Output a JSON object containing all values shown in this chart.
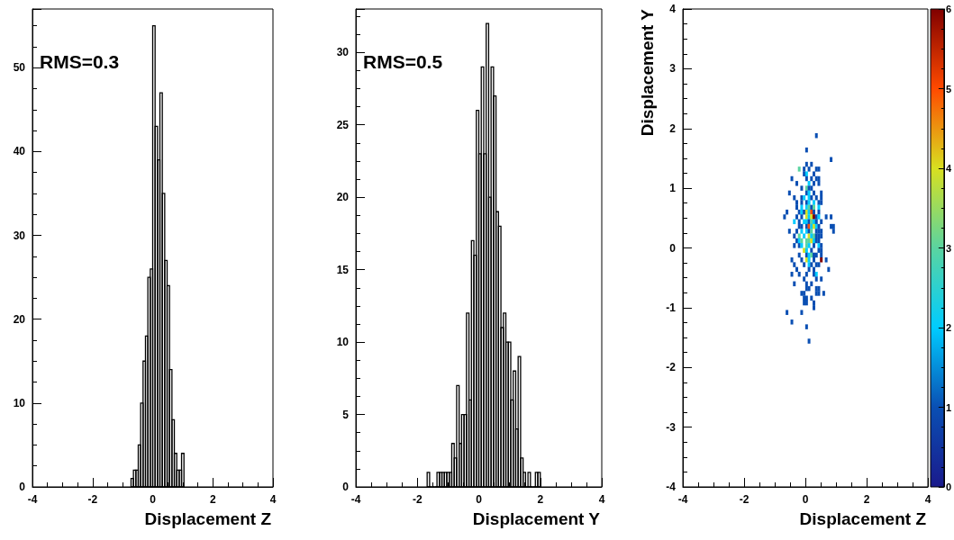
{
  "chart_data": [
    {
      "type": "histogram",
      "color": "#000000",
      "xlabel": "Displacement Z",
      "annotations": [
        "RMS=0.3"
      ],
      "bins": [
        -0.72,
        -0.64,
        -0.56,
        -0.48,
        -0.4,
        -0.32,
        -0.24,
        -0.16,
        -0.08,
        0,
        0.08,
        0.16,
        0.24,
        0.32,
        0.4,
        0.48,
        0.56,
        0.64,
        0.72,
        0.8,
        0.88,
        0.96,
        1.04
      ],
      "values": [
        1,
        2,
        2,
        5,
        10,
        15,
        18,
        25,
        26,
        55,
        43,
        39,
        47,
        35,
        27,
        24,
        14,
        8,
        4,
        2,
        2,
        4
      ],
      "xlim": [
        -4,
        4
      ],
      "xticks": [
        -4,
        -2,
        0,
        2,
        4
      ],
      "ylim": [
        0,
        57
      ],
      "yticks": [
        0,
        10,
        20,
        30,
        40,
        50
      ]
    },
    {
      "type": "histogram",
      "color": "#000000",
      "xlabel": "Displacement Y",
      "annotations": [
        "RMS=0.5"
      ],
      "bins": [
        -1.68,
        -1.6,
        -1.52,
        -1.44,
        -1.36,
        -1.28,
        -1.2,
        -1.12,
        -1.04,
        -0.96,
        -0.88,
        -0.8,
        -0.72,
        -0.64,
        -0.56,
        -0.48,
        -0.4,
        -0.32,
        -0.24,
        -0.16,
        -0.08,
        0,
        0.08,
        0.16,
        0.24,
        0.32,
        0.4,
        0.48,
        0.56,
        0.64,
        0.72,
        0.8,
        0.88,
        0.96,
        1.04,
        1.12,
        1.2,
        1.28,
        1.36,
        1.44,
        1.52,
        1.6,
        1.68,
        1.76,
        1.84,
        1.92,
        2.0
      ],
      "values": [
        1,
        0,
        0,
        0,
        1,
        1,
        1,
        1,
        1,
        1,
        3,
        2,
        7,
        3,
        5,
        5,
        12,
        6,
        17,
        16,
        26,
        23,
        29,
        23,
        32,
        20,
        29,
        27,
        19,
        18,
        11,
        12,
        10,
        10,
        6,
        8,
        4,
        9,
        2,
        1,
        0,
        1,
        0,
        0,
        1,
        1
      ],
      "xlim": [
        -4,
        4
      ],
      "xticks": [
        -4,
        -2,
        0,
        2,
        4
      ],
      "ylim": [
        0,
        33
      ],
      "yticks": [
        0,
        5,
        10,
        15,
        20,
        25,
        30
      ]
    },
    {
      "type": "scatter",
      "marker": "square",
      "xlabel": "Displacement Z",
      "ylabel": "Displacement Y",
      "x": [
        0.36,
        0.04,
        0.84,
        0.04,
        0.2,
        -0.2,
        -0.04,
        0.12,
        0.36,
        0.44,
        -0.04,
        0.04,
        0.28,
        -0.44,
        0.04,
        0.2,
        0.36,
        0.44,
        -0.28,
        0.12,
        0.28,
        0.44,
        -0.12,
        0.04,
        0.12,
        0.2,
        -0.52,
        0.04,
        0.12,
        0.28,
        0.52,
        -0.36,
        -0.12,
        -0.04,
        0.12,
        0.2,
        0.36,
        0.52,
        -0.28,
        -0.12,
        0.04,
        0.12,
        0.28,
        0.44,
        0.52,
        -0.28,
        -0.12,
        0.04,
        0.12,
        0.2,
        0.28,
        0.44,
        -0.6,
        -0.2,
        -0.12,
        -0.04,
        0.04,
        0.12,
        0.2,
        0.28,
        0.44,
        -0.68,
        -0.28,
        -0.12,
        0.04,
        0.12,
        0.2,
        0.28,
        0.36,
        0.44,
        0.68,
        0.84,
        -0.36,
        -0.2,
        -0.04,
        0.04,
        0.12,
        0.2,
        0.28,
        0.36,
        0.52,
        -0.2,
        -0.12,
        0.04,
        0.12,
        0.2,
        0.28,
        0.36,
        0.44,
        0.84,
        0.92,
        -0.52,
        -0.28,
        -0.12,
        0.04,
        0.12,
        0.2,
        0.36,
        0.44,
        0.52,
        0.92,
        -0.36,
        -0.2,
        -0.04,
        0.12,
        0.2,
        0.28,
        0.36,
        0.44,
        0.52,
        -0.28,
        -0.2,
        -0.12,
        0.04,
        0.12,
        0.2,
        0.28,
        0.36,
        0.44,
        -0.36,
        -0.2,
        -0.12,
        0.04,
        0.12,
        0.28,
        0.44,
        0.52,
        -0.04,
        0.04,
        0.2,
        0.44,
        0.52,
        -0.2,
        0.04,
        0.12,
        0.2,
        0.28,
        0.36,
        0.52,
        -0.44,
        -0.12,
        0.04,
        0.12,
        0.28,
        0.52,
        0.68,
        -0.36,
        -0.04,
        0.12,
        0.2,
        0.36,
        0.44,
        -0.28,
        0.12,
        0.28,
        0.76,
        -0.44,
        -0.2,
        0.04,
        0.28,
        0.36,
        -0.04,
        0.36,
        0.52,
        -0.36,
        0.04,
        0.2,
        0.04,
        0.12,
        0.36,
        0.44,
        -0.12,
        -0.04,
        0.36,
        0.44,
        0.6,
        -0.04,
        0.04,
        0.2,
        -0.04,
        0.04,
        0.28,
        0.28,
        -0.6,
        -0.12,
        -0.44,
        0.04,
        0.12
      ],
      "values": [
        1.88,
        1.64,
        1.48,
        1.4,
        1.4,
        1.32,
        1.32,
        1.32,
        1.32,
        1.32,
        1.24,
        1.24,
        1.24,
        1.16,
        1.16,
        1.16,
        1.16,
        1.16,
        1.08,
        1.08,
        1.08,
        1.08,
        1.0,
        1.0,
        1.0,
        1.0,
        0.92,
        0.92,
        0.92,
        0.92,
        0.92,
        0.84,
        0.84,
        0.84,
        0.84,
        0.84,
        0.84,
        0.84,
        0.76,
        0.76,
        0.76,
        0.76,
        0.76,
        0.76,
        0.76,
        0.68,
        0.68,
        0.68,
        0.68,
        0.68,
        0.68,
        0.68,
        0.6,
        0.6,
        0.6,
        0.6,
        0.6,
        0.6,
        0.6,
        0.6,
        0.6,
        0.52,
        0.52,
        0.52,
        0.52,
        0.52,
        0.52,
        0.52,
        0.52,
        0.52,
        0.52,
        0.52,
        0.44,
        0.44,
        0.44,
        0.44,
        0.44,
        0.44,
        0.44,
        0.44,
        0.44,
        0.36,
        0.36,
        0.36,
        0.36,
        0.36,
        0.36,
        0.36,
        0.36,
        0.36,
        0.36,
        0.28,
        0.28,
        0.28,
        0.28,
        0.28,
        0.28,
        0.28,
        0.28,
        0.28,
        0.28,
        0.2,
        0.2,
        0.2,
        0.2,
        0.2,
        0.2,
        0.2,
        0.2,
        0.2,
        0.12,
        0.12,
        0.12,
        0.12,
        0.12,
        0.12,
        0.12,
        0.12,
        0.12,
        0.04,
        0.04,
        0.04,
        0.04,
        0.04,
        0.04,
        0.04,
        0.04,
        -0.04,
        -0.04,
        -0.04,
        -0.04,
        -0.04,
        -0.12,
        -0.12,
        -0.12,
        -0.12,
        -0.12,
        -0.12,
        -0.12,
        -0.2,
        -0.2,
        -0.2,
        -0.2,
        -0.2,
        -0.2,
        -0.2,
        -0.28,
        -0.28,
        -0.28,
        -0.28,
        -0.28,
        -0.28,
        -0.36,
        -0.36,
        -0.36,
        -0.36,
        -0.44,
        -0.44,
        -0.44,
        -0.44,
        -0.44,
        -0.52,
        -0.52,
        -0.52,
        -0.6,
        -0.6,
        -0.6,
        -0.68,
        -0.68,
        -0.68,
        -0.68,
        -0.76,
        -0.76,
        -0.76,
        -0.76,
        -0.76,
        -0.84,
        -0.84,
        -0.84,
        -0.92,
        -0.92,
        -0.92,
        -1.0,
        -1.08,
        -1.08,
        -1.24,
        -1.32,
        -1.56
      ],
      "cvalues": [
        1,
        1,
        1,
        1,
        1,
        3,
        1,
        1,
        1,
        1,
        1,
        2,
        1,
        1,
        1,
        1,
        1,
        1,
        1,
        2,
        1,
        1,
        1,
        3,
        1,
        1,
        1,
        1,
        2,
        1,
        1,
        1,
        1,
        2,
        2,
        1,
        1,
        1,
        1,
        1,
        1,
        2,
        2,
        1,
        1,
        1,
        2,
        2,
        3,
        1,
        3,
        2,
        1,
        1,
        2,
        1,
        4,
        2,
        5,
        1,
        1,
        1,
        1,
        1,
        4,
        2,
        4,
        6,
        1,
        2,
        1,
        1,
        2,
        1,
        2,
        2,
        1,
        3,
        2,
        1,
        1,
        1,
        1,
        1,
        5,
        2,
        4,
        2,
        1,
        1,
        1,
        1,
        1,
        2,
        2,
        1,
        3,
        1,
        1,
        1,
        1,
        1,
        3,
        2,
        4,
        2,
        3,
        1,
        1,
        1,
        1,
        2,
        3,
        3,
        3,
        4,
        2,
        1,
        1,
        1,
        1,
        2,
        3,
        2,
        1,
        2,
        1,
        4,
        2,
        1,
        1,
        1,
        1,
        1,
        2,
        3,
        1,
        1,
        1,
        1,
        1,
        4,
        2,
        1,
        6,
        1,
        1,
        1,
        2,
        1,
        1,
        1,
        1,
        1,
        1,
        1,
        1,
        1,
        1,
        1,
        2,
        1,
        1,
        1,
        1,
        1,
        1,
        1,
        1,
        1,
        1,
        1,
        1,
        1,
        1,
        1,
        1,
        1,
        1,
        1,
        1,
        1,
        1,
        1,
        1,
        1,
        1,
        1
      ],
      "xlim": [
        -4,
        4
      ],
      "xticks": [
        -4,
        -2,
        0,
        2,
        4
      ],
      "ylim": [
        -4,
        4
      ],
      "yticks": [
        -4,
        -3,
        -2,
        -1,
        0,
        1,
        2,
        3,
        4
      ],
      "clim": [
        0,
        6
      ],
      "cticks": [
        0,
        1,
        2,
        3,
        4,
        5,
        6
      ]
    }
  ]
}
